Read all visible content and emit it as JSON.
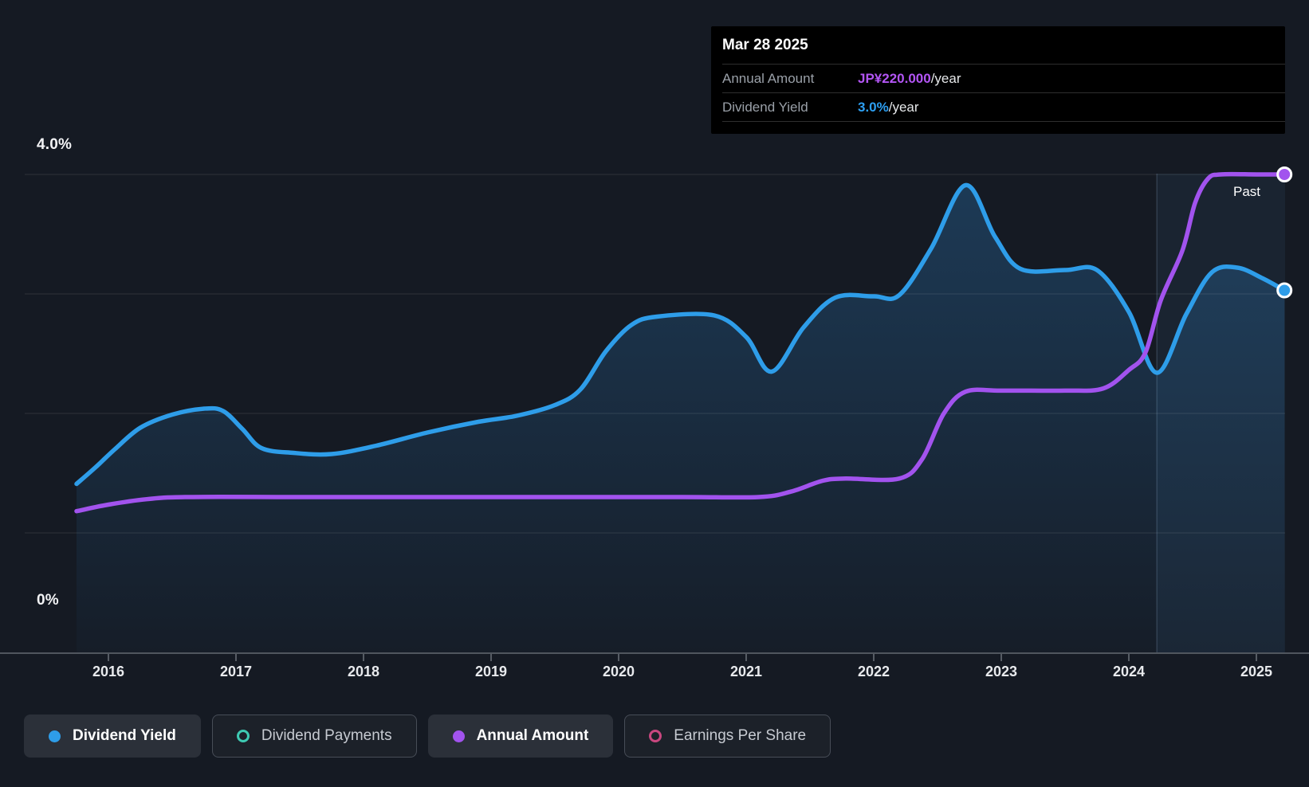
{
  "page": {
    "background": "#151a23"
  },
  "tooltip": {
    "date": "Mar 28 2025",
    "rows": [
      {
        "label": "Annual Amount",
        "value": "JP¥220.000",
        "suffix": "/year",
        "color": "#b355f5"
      },
      {
        "label": "Dividend Yield",
        "value": "3.0%",
        "suffix": "/year",
        "color": "#2d9ff2"
      }
    ]
  },
  "past_label": "Past",
  "y_axis": {
    "top_label": "4.0%",
    "bottom_label": "0%"
  },
  "legend": {
    "items": [
      {
        "label": "Dividend Yield",
        "color": "#2e9de9",
        "style": "filled",
        "active": true
      },
      {
        "label": "Dividend Payments",
        "color": "#3ec9b2",
        "style": "ring",
        "active": false
      },
      {
        "label": "Annual Amount",
        "color": "#a253ee",
        "style": "filled",
        "active": true
      },
      {
        "label": "Earnings Per Share",
        "color": "#c9477f",
        "style": "ring",
        "active": false
      }
    ]
  },
  "chart_data": {
    "type": "line",
    "title": "Dividend yield and annual amount history",
    "x_ticks": [
      2016,
      2017,
      2018,
      2019,
      2020,
      2021,
      2022,
      2023,
      2024,
      2025
    ],
    "x_range": [
      2015.33,
      2025.23
    ],
    "y_axis": {
      "unit": "%",
      "min": 0,
      "max": 4.33,
      "gridlines": [
        1,
        2,
        3,
        4
      ],
      "labeled": {
        "top": 4.0,
        "bottom": 0
      }
    },
    "past_divider_year": 2024.22,
    "grid": true,
    "legend_position": "bottom",
    "series": [
      {
        "name": "Dividend Yield",
        "color": "#2e9de9",
        "unit": "percent",
        "area_fill": true,
        "points": [
          [
            2015.75,
            1.41
          ],
          [
            2015.9,
            1.55
          ],
          [
            2016.05,
            1.7
          ],
          [
            2016.25,
            1.88
          ],
          [
            2016.5,
            1.99
          ],
          [
            2016.75,
            2.04
          ],
          [
            2016.9,
            2.02
          ],
          [
            2017.05,
            1.87
          ],
          [
            2017.2,
            1.71
          ],
          [
            2017.45,
            1.67
          ],
          [
            2017.75,
            1.66
          ],
          [
            2018.1,
            1.73
          ],
          [
            2018.5,
            1.84
          ],
          [
            2018.9,
            1.93
          ],
          [
            2019.2,
            1.98
          ],
          [
            2019.5,
            2.07
          ],
          [
            2019.7,
            2.2
          ],
          [
            2019.9,
            2.52
          ],
          [
            2020.1,
            2.74
          ],
          [
            2020.3,
            2.81
          ],
          [
            2020.75,
            2.82
          ],
          [
            2021.0,
            2.64
          ],
          [
            2021.2,
            2.35
          ],
          [
            2021.45,
            2.72
          ],
          [
            2021.7,
            2.97
          ],
          [
            2022.0,
            2.98
          ],
          [
            2022.2,
            2.99
          ],
          [
            2022.45,
            3.38
          ],
          [
            2022.72,
            3.91
          ],
          [
            2022.95,
            3.48
          ],
          [
            2023.15,
            3.21
          ],
          [
            2023.5,
            3.2
          ],
          [
            2023.75,
            3.2
          ],
          [
            2024.0,
            2.85
          ],
          [
            2024.22,
            2.34
          ],
          [
            2024.45,
            2.83
          ],
          [
            2024.65,
            3.18
          ],
          [
            2024.85,
            3.22
          ],
          [
            2025.05,
            3.13
          ],
          [
            2025.22,
            3.03
          ]
        ]
      },
      {
        "name": "Annual Amount",
        "color": "#a253ee",
        "unit": "JPY_per_year",
        "area_fill": false,
        "value_scale": {
          "max_value": 220,
          "max_pct": 4.0
        },
        "points": [
          [
            2015.75,
            65
          ],
          [
            2016.0,
            68
          ],
          [
            2016.3,
            70.5
          ],
          [
            2016.6,
            71.5
          ],
          [
            2017.5,
            71.5
          ],
          [
            2018.5,
            71.5
          ],
          [
            2019.5,
            71.5
          ],
          [
            2020.5,
            71.5
          ],
          [
            2021.1,
            71.5
          ],
          [
            2021.35,
            74
          ],
          [
            2021.6,
            79
          ],
          [
            2021.78,
            80
          ],
          [
            2022.2,
            80
          ],
          [
            2022.38,
            89
          ],
          [
            2022.55,
            110
          ],
          [
            2022.72,
            120
          ],
          [
            2023.0,
            120.5
          ],
          [
            2023.5,
            120.5
          ],
          [
            2023.8,
            121.5
          ],
          [
            2024.0,
            130
          ],
          [
            2024.13,
            138
          ],
          [
            2024.25,
            162
          ],
          [
            2024.42,
            185
          ],
          [
            2024.52,
            207
          ],
          [
            2024.62,
            218
          ],
          [
            2024.72,
            220
          ],
          [
            2025.0,
            220
          ],
          [
            2025.22,
            220
          ]
        ]
      }
    ]
  }
}
